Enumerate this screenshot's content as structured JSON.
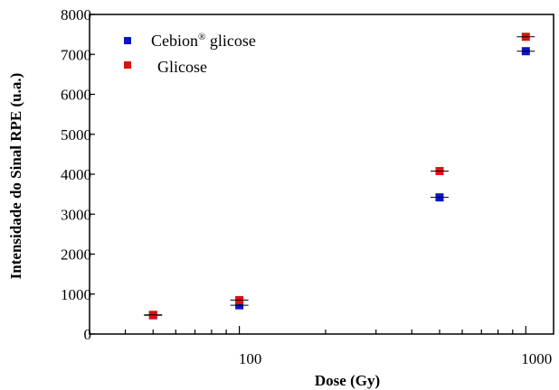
{
  "chart_data": {
    "type": "scatter",
    "title": "",
    "xlabel": "Dose (Gy)",
    "ylabel": "Intensidade do Sinal RPE (u.a.)",
    "x_scale": "log",
    "xlim": [
      30,
      1250
    ],
    "ylim": [
      0,
      8000
    ],
    "x_ticks": [
      100,
      1000
    ],
    "y_ticks": [
      0,
      1000,
      2000,
      3000,
      4000,
      5000,
      6000,
      7000,
      8000
    ],
    "grid": false,
    "legend_position": "top-left",
    "series": [
      {
        "name": "Cebion",
        "name_sup": "®",
        "name_suffix": " glicose",
        "color": "#0a14c8",
        "marker": "square",
        "points": [
          {
            "x": 50,
            "y": 470
          },
          {
            "x": 100,
            "y": 720
          },
          {
            "x": 500,
            "y": 3420
          },
          {
            "x": 1000,
            "y": 7080
          }
        ]
      },
      {
        "name": "Glicose",
        "color": "#e01010",
        "marker": "square",
        "points": [
          {
            "x": 50,
            "y": 480
          },
          {
            "x": 100,
            "y": 850
          },
          {
            "x": 500,
            "y": 4080
          },
          {
            "x": 1000,
            "y": 7440
          }
        ]
      }
    ]
  }
}
